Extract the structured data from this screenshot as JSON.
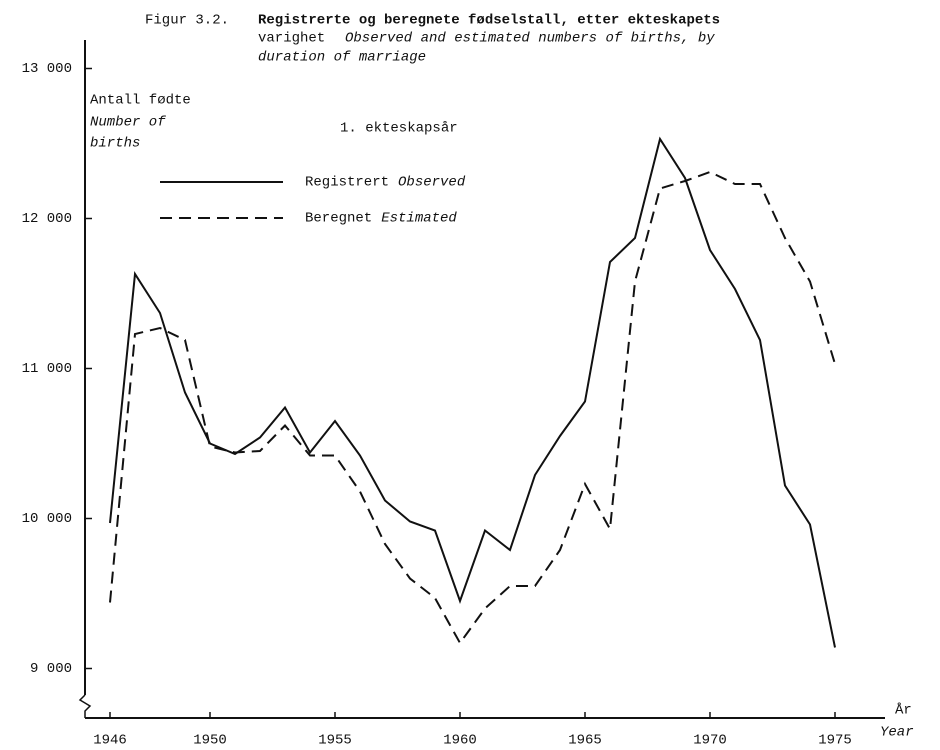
{
  "chart_data": {
    "type": "line",
    "title_number": "Figur 3.2.",
    "title_no_1": "Registrerte og beregnete fødselstall, etter ekteskapets",
    "title_no_2": "varighet",
    "title_en_1": "Observed and estimated numbers of births, by",
    "title_en_2": "duration of marriage",
    "subtitle": "1. ekteskapsår",
    "y_label": "Antall fødte",
    "y_label_en": [
      "Number of",
      "births"
    ],
    "x_label": "År",
    "x_label_en": "Year",
    "x": [
      1946,
      1947,
      1948,
      1949,
      1950,
      1951,
      1952,
      1953,
      1954,
      1955,
      1956,
      1957,
      1958,
      1959,
      1960,
      1961,
      1962,
      1963,
      1964,
      1965,
      1966,
      1967,
      1968,
      1969,
      1970,
      1971,
      1972,
      1973,
      1974,
      1975
    ],
    "series": [
      {
        "name": "Registrert",
        "name_en": "Observed",
        "color": "#111111",
        "line_style": "solid",
        "values": [
          9970,
          11630,
          11370,
          10840,
          10500,
          10430,
          10540,
          10740,
          10440,
          10650,
          10420,
          10120,
          9980,
          9920,
          9450,
          9920,
          9790,
          10290,
          10550,
          10780,
          11710,
          11870,
          12530,
          12270,
          11790,
          11530,
          11190,
          10220,
          9960,
          9140
        ]
      },
      {
        "name": "Beregnet",
        "name_en": "Estimated",
        "color": "#111111",
        "line_style": "dashed",
        "values": [
          9440,
          11230,
          11270,
          11190,
          10480,
          10440,
          10450,
          10620,
          10420,
          10420,
          10180,
          9830,
          9600,
          9470,
          9170,
          9400,
          9550,
          9550,
          9790,
          10230,
          9930,
          11580,
          12200,
          12250,
          12310,
          12230,
          12230,
          11870,
          11580,
          11030
        ]
      }
    ],
    "xlim": [
      1945,
      1977
    ],
    "xticks": [
      1946,
      1950,
      1955,
      1960,
      1965,
      1970,
      1975
    ],
    "ylim": [
      8670,
      13190
    ],
    "yticks": [
      {
        "value": 9000,
        "label": "9 000"
      },
      {
        "value": 10000,
        "label": "10 000"
      },
      {
        "value": 11000,
        "label": "11 000"
      },
      {
        "value": 12000,
        "label": "12 000"
      },
      {
        "value": 13000,
        "label": "13 000"
      }
    ]
  }
}
